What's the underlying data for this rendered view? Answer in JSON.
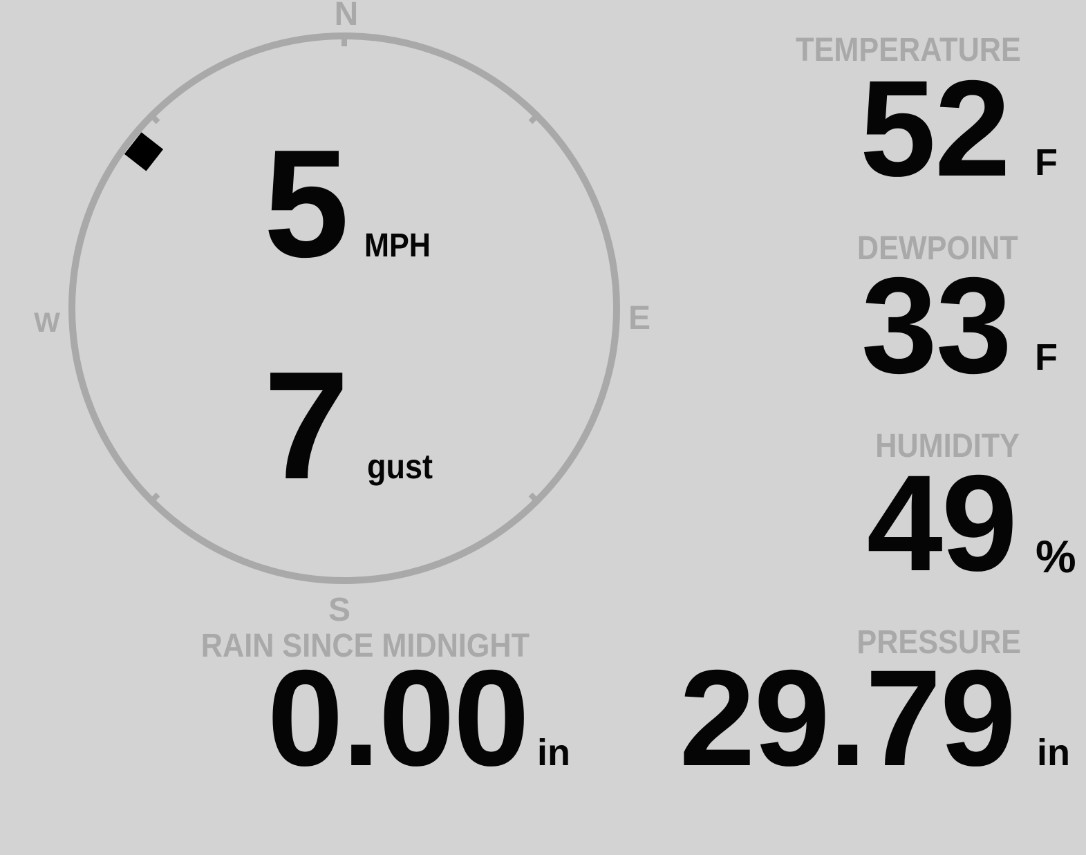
{
  "wind": {
    "speed": {
      "value": "5",
      "unit": "MPH"
    },
    "gust": {
      "value": "7",
      "unit": "gust"
    },
    "direction_bearing_deg": 308,
    "compass": {
      "north": "N",
      "east": "E",
      "south": "S",
      "west": "W"
    }
  },
  "metrics": {
    "temperature": {
      "label": "TEMPERATURE",
      "value": "52",
      "unit": "F"
    },
    "dewpoint": {
      "label": "DEWPOINT",
      "value": "33",
      "unit": "F"
    },
    "humidity": {
      "label": "HUMIDITY",
      "value": "49",
      "unit": "%"
    },
    "rain_since_midnight": {
      "label": "RAIN SINCE MIDNIGHT",
      "value": "0.00",
      "unit": "in"
    },
    "pressure": {
      "label": "PRESSURE",
      "value": "29.79",
      "unit": "in"
    }
  },
  "colors": {
    "background": "#d3d3d3",
    "muted_gray": "#a9a9a9",
    "value_text": "#050505",
    "marker": "#000000"
  }
}
